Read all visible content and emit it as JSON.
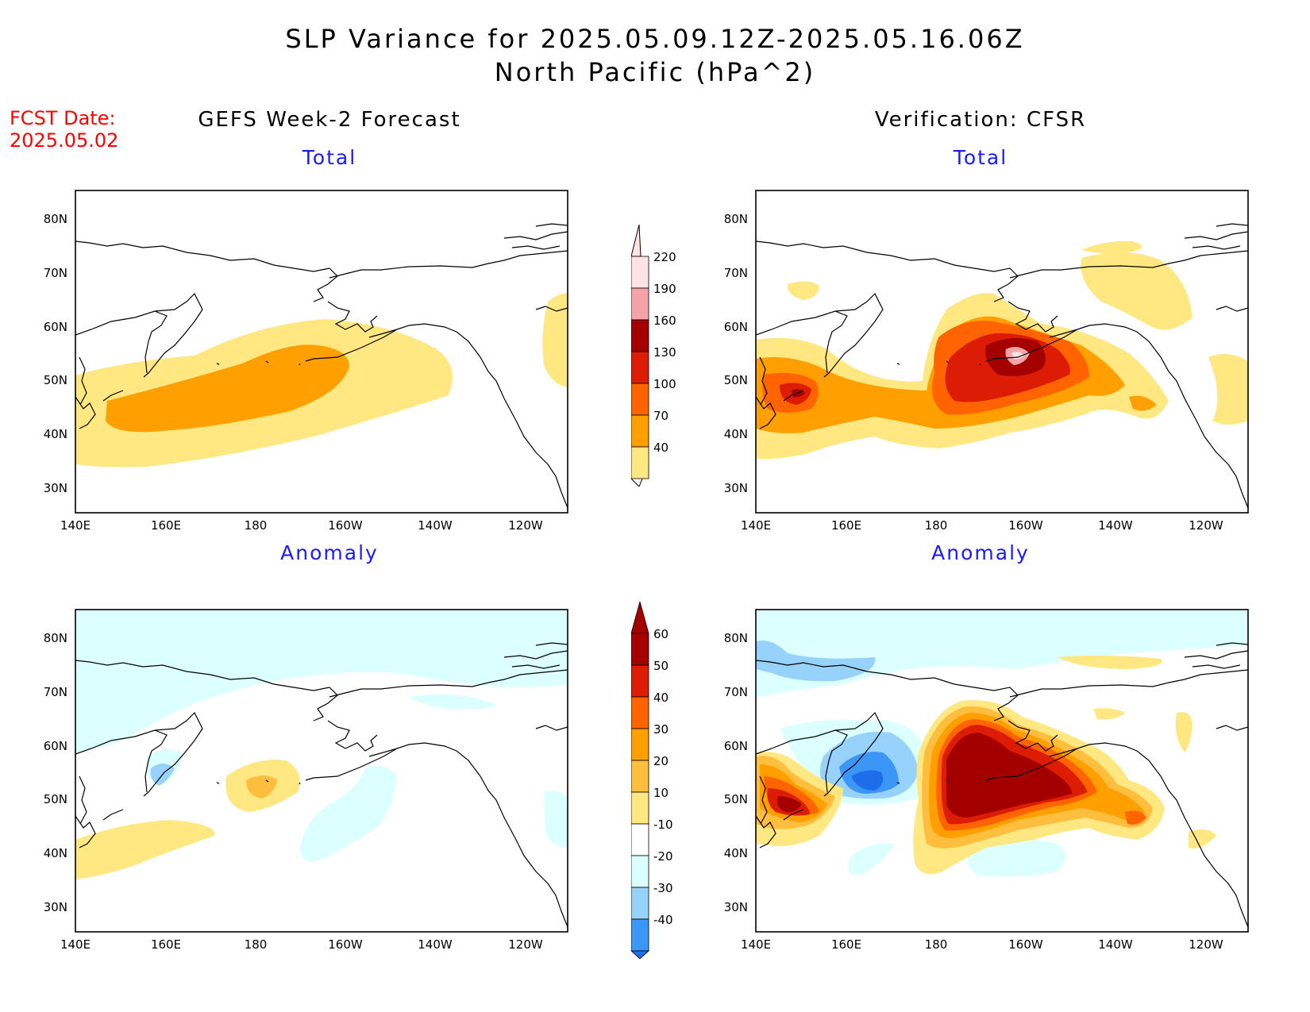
{
  "title": {
    "line1": "SLP Variance for 2025.05.09.12Z-2025.05.16.06Z",
    "line2": "North Pacific (hPa^2)"
  },
  "fcst_date": {
    "label": "FCST Date:",
    "value": "2025.05.02"
  },
  "columns": {
    "left": "GEFS Week-2 Forecast",
    "right": "Verification: CFSR"
  },
  "panel_titles": {
    "total": "Total",
    "anomaly": "Anomaly"
  },
  "axes": {
    "lat_ticks": [
      "80N",
      "70N",
      "60N",
      "50N",
      "40N",
      "30N"
    ],
    "lon_ticks": [
      "140E",
      "160E",
      "180",
      "160W",
      "140W",
      "120W"
    ]
  },
  "total_colorbar": {
    "labels": [
      "220",
      "190",
      "160",
      "130",
      "100",
      "70",
      "40"
    ],
    "colors": [
      "#fde3e3",
      "#f4a3a8",
      "#a50000",
      "#dd1c05",
      "#ff6400",
      "#ff9f00",
      "#ffe781"
    ]
  },
  "anomaly_colorbar": {
    "labels": [
      "60",
      "50",
      "40",
      "30",
      "20",
      "10",
      "-10",
      "-20",
      "-30",
      "-40"
    ],
    "colors": [
      "#a50000",
      "#dd1c05",
      "#ff6400",
      "#ff9f00",
      "#ffbe3d",
      "#ffe781",
      "#ffffff",
      "#dcffff",
      "#96d2fa",
      "#3c96f5",
      "#1e6eeb"
    ]
  }
}
